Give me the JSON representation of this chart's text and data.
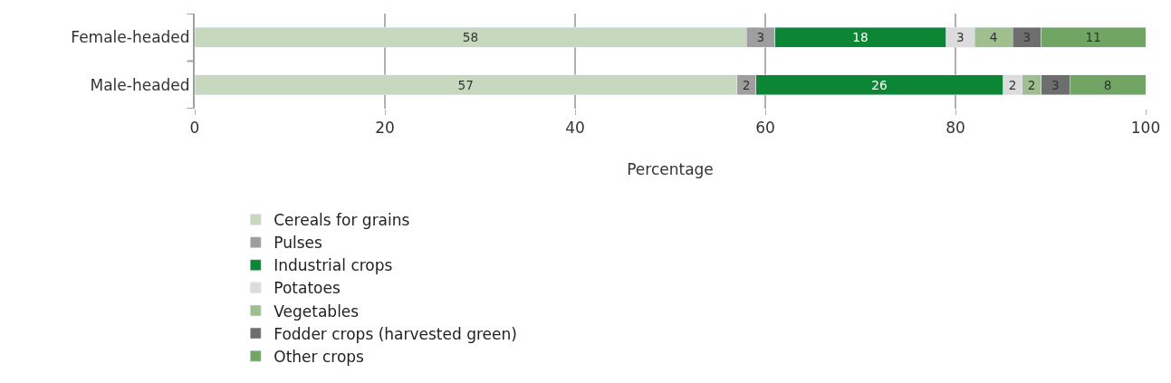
{
  "chart_data": {
    "type": "bar",
    "orientation": "horizontal",
    "stacked": true,
    "data_labels": true,
    "xlabel": "Percentage",
    "categories": [
      "Female-headed",
      "Male-headed"
    ],
    "series": [
      {
        "name": "Cereals for grains",
        "color": "#c6d9bf",
        "values": [
          58,
          57
        ]
      },
      {
        "name": "Pulses",
        "color": "#9e9e9e",
        "values": [
          3,
          2
        ]
      },
      {
        "name": "Industrial crops",
        "color": "#0c8535",
        "values": [
          18,
          26
        ]
      },
      {
        "name": "Potatoes",
        "color": "#dcdcdc",
        "values": [
          3,
          2
        ]
      },
      {
        "name": "Vegetables",
        "color": "#9fbf8f",
        "values": [
          4,
          2
        ]
      },
      {
        "name": "Fodder crops (harvested green)",
        "color": "#6e6e6e",
        "values": [
          3,
          3
        ]
      },
      {
        "name": "Other crops",
        "color": "#70a564",
        "values": [
          11,
          8
        ]
      }
    ],
    "xlim": [
      0,
      100
    ],
    "xticks": [
      0,
      20,
      40,
      60,
      80,
      100
    ],
    "grid": "x",
    "legend": "bottom"
  }
}
